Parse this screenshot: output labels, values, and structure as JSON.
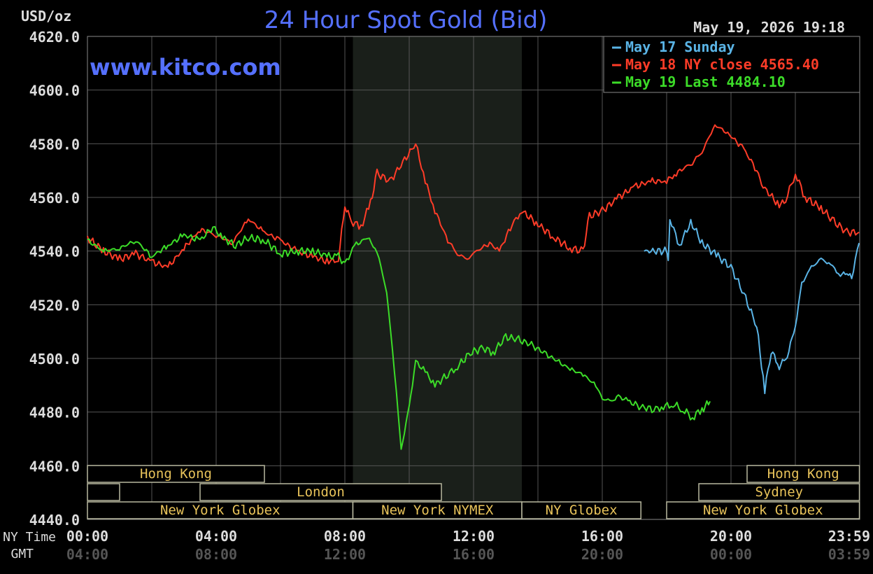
{
  "chart_data": {
    "type": "line",
    "title": "24 Hour Spot Gold (Bid)",
    "unit_label": "USD/oz",
    "watermark": "www.kitco.com",
    "timestamp": "May 19, 2026 19:18",
    "ylim": [
      4440.0,
      4620.0
    ],
    "y_ticks": [
      "4620.0",
      "4600.0",
      "4580.0",
      "4560.0",
      "4540.0",
      "4520.0",
      "4500.0",
      "4480.0",
      "4460.0",
      "4440.0"
    ],
    "x_range_hours": [
      0,
      24
    ],
    "x_row_labels": {
      "ny": "NY Time",
      "gmt": "GMT"
    },
    "x_ticks_ny": [
      "00:00",
      "04:00",
      "08:00",
      "12:00",
      "16:00",
      "20:00",
      "23:59"
    ],
    "x_ticks_gmt": [
      "04:00",
      "08:00",
      "12:00",
      "16:00",
      "20:00",
      "00:00",
      "03:59"
    ],
    "grid": true,
    "legend_position": "top-right",
    "colors": {
      "background": "#000000",
      "grid": "#555555",
      "axis_text": "#dddddd",
      "title": "#5570ff",
      "session_text": "#e8c35a",
      "session_border": "#b9b9a0",
      "nymex_shade": "#1a1f1a"
    },
    "series": [
      {
        "name": "May 17 Sunday",
        "color": "#5ab4e6",
        "x": [
          17.3,
          18.0,
          18.05,
          18.1,
          18.4,
          18.75,
          19.1,
          19.6,
          20.0,
          20.4,
          20.8,
          21.05,
          21.25,
          21.5,
          21.75,
          22.0,
          22.2,
          22.5,
          22.8,
          23.1,
          23.4,
          23.6,
          23.75,
          23.98
        ],
        "y": [
          4540.0,
          4540.0,
          4537.0,
          4552.0,
          4542.0,
          4551.0,
          4543.0,
          4538.0,
          4534.0,
          4524.0,
          4512.0,
          4488.0,
          4503.0,
          4497.0,
          4501.0,
          4512.0,
          4528.0,
          4534.0,
          4537.0,
          4535.0,
          4531.0,
          4532.0,
          4530.0,
          4543.0
        ]
      },
      {
        "name": "May 18 NY close 4565.40",
        "color": "#ff3c28",
        "x": [
          0.0,
          0.5,
          1.0,
          1.5,
          2.0,
          2.5,
          3.0,
          3.5,
          4.0,
          4.5,
          5.0,
          5.5,
          6.0,
          6.5,
          7.0,
          7.5,
          7.8,
          8.0,
          8.2,
          8.5,
          8.8,
          9.0,
          9.4,
          9.8,
          10.2,
          10.5,
          10.8,
          11.2,
          11.5,
          11.8,
          12.1,
          12.5,
          12.8,
          13.2,
          13.5,
          14.0,
          14.5,
          15.0,
          15.4,
          15.6,
          16.0,
          16.5,
          17.0,
          17.5,
          18.0,
          18.3,
          18.8,
          19.1,
          19.5,
          19.9,
          20.4,
          20.8,
          21.0,
          21.5,
          21.7,
          22.0,
          22.3,
          22.8,
          23.2,
          23.6,
          23.98
        ],
        "y": [
          4545.0,
          4540.0,
          4537.0,
          4539.0,
          4536.0,
          4534.0,
          4541.0,
          4548.0,
          4546.0,
          4543.0,
          4552.0,
          4547.0,
          4544.0,
          4540.0,
          4538.0,
          4536.0,
          4537.0,
          4557.0,
          4551.0,
          4549.0,
          4558.0,
          4569.0,
          4566.0,
          4573.0,
          4580.0,
          4566.0,
          4555.0,
          4544.0,
          4539.0,
          4537.0,
          4540.0,
          4543.0,
          4540.0,
          4550.0,
          4555.0,
          4550.0,
          4545.0,
          4541.0,
          4540.0,
          4553.0,
          4555.0,
          4560.0,
          4564.0,
          4566.0,
          4566.0,
          4569.0,
          4573.0,
          4577.0,
          4587.0,
          4584.0,
          4578.0,
          4570.0,
          4564.0,
          4557.0,
          4559.0,
          4569.0,
          4560.0,
          4556.0,
          4551.0,
          4547.0,
          4547.0
        ]
      },
      {
        "name": "May 19 Last 4484.10",
        "color": "#3cdc28",
        "x": [
          0.0,
          0.5,
          1.0,
          1.5,
          2.0,
          2.5,
          3.0,
          3.5,
          3.9,
          4.2,
          4.6,
          5.0,
          5.5,
          6.0,
          6.5,
          7.0,
          7.5,
          7.8,
          8.0,
          8.3,
          8.7,
          9.0,
          9.3,
          9.6,
          9.75,
          10.0,
          10.2,
          10.5,
          10.8,
          11.2,
          11.5,
          11.9,
          12.3,
          12.6,
          13.0,
          13.4,
          13.8,
          14.2,
          14.6,
          15.0,
          15.4,
          15.8,
          16.0,
          16.3,
          16.5,
          16.8,
          17.2,
          17.6,
          17.9,
          18.2,
          18.5,
          18.8,
          19.1,
          19.35
        ],
        "y": [
          4544.0,
          4540.0,
          4541.0,
          4544.0,
          4538.0,
          4542.0,
          4546.0,
          4544.0,
          4549.0,
          4545.0,
          4542.0,
          4545.0,
          4544.0,
          4539.0,
          4540.0,
          4540.0,
          4538.0,
          4538.0,
          4535.0,
          4542.0,
          4545.0,
          4540.0,
          4525.0,
          4488.0,
          4466.0,
          4482.0,
          4499.0,
          4495.0,
          4490.0,
          4494.0,
          4497.0,
          4502.0,
          4504.0,
          4502.0,
          4508.0,
          4507.0,
          4505.0,
          4502.0,
          4499.0,
          4496.0,
          4494.0,
          4490.0,
          4485.0,
          4484.0,
          4486.0,
          4484.0,
          4482.0,
          4481.0,
          4482.0,
          4483.0,
          4481.0,
          4478.0,
          4481.0,
          4484.0
        ]
      }
    ],
    "sessions": [
      {
        "label": "Hong Kong",
        "row": 0,
        "start": 0.0,
        "end": 5.5
      },
      {
        "label": "",
        "row": 1,
        "start": 0.0,
        "end": 1.0
      },
      {
        "label": "London",
        "row": 1,
        "start": 3.5,
        "end": 11.0
      },
      {
        "label": "New York Globex",
        "row": 2,
        "start": 0.0,
        "end": 8.25
      },
      {
        "label": "New York NYMEX",
        "row": 2,
        "start": 8.25,
        "end": 13.5
      },
      {
        "label": "NY Globex",
        "row": 2,
        "start": 13.5,
        "end": 17.2
      },
      {
        "label": "Hong Kong",
        "row": 0,
        "start": 20.5,
        "end": 23.99
      },
      {
        "label": "Sydney",
        "row": 1,
        "start": 19.0,
        "end": 23.99
      },
      {
        "label": "New York Globex",
        "row": 2,
        "start": 18.0,
        "end": 23.99
      }
    ],
    "nymex_shade": [
      8.25,
      13.5
    ]
  }
}
